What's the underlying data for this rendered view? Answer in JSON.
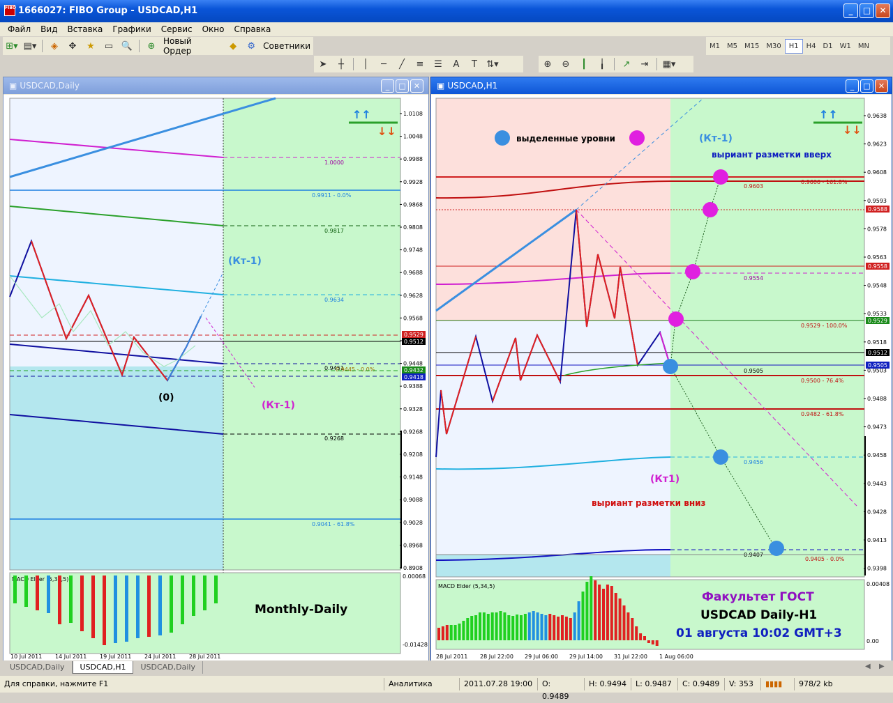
{
  "window": {
    "title": "1666027: FIBO Group - USDCAD,H1",
    "icon_text": "FIBO"
  },
  "menu": [
    "Файл",
    "Вид",
    "Вставка",
    "Графики",
    "Сервис",
    "Окно",
    "Справка"
  ],
  "toolbar": {
    "new_order": "Новый Ордер",
    "advisors": "Советники",
    "text_tool": "A",
    "timeframes": [
      "M1",
      "M5",
      "M15",
      "M30",
      "H1",
      "H4",
      "D1",
      "W1",
      "MN"
    ],
    "active_tf": "H1"
  },
  "left_chart": {
    "title": "USDCAD,Daily",
    "price_labels": [
      "1.0108",
      "1.0048",
      "0.9988",
      "0.9928",
      "0.9868",
      "0.9808",
      "0.9748",
      "0.9688",
      "0.9628",
      "0.9568",
      "0.9508",
      "0.9448",
      "0.9388",
      "0.9328",
      "0.9268",
      "0.9208",
      "0.9148",
      "0.9088",
      "0.9028",
      "0.8968",
      "0.8908"
    ],
    "boxed_labels": [
      "0.9529",
      "0.9512",
      "0.9432",
      "0.9418"
    ],
    "level_labels": [
      "1.0000",
      "0.9911 - 0.0%",
      "0.9817",
      "0.9634",
      "0.9451",
      "0.9445 - 0.0%",
      "0.9268",
      "0.9041 - 61.8%"
    ],
    "annotations": [
      "(Кт-1)",
      "(Кт-1)",
      "(0)"
    ],
    "macd_label": "MACD Elder (5,34,5)",
    "macd_scale": [
      "0.00068",
      "-0.01428"
    ],
    "caption": "Monthly-Daily",
    "dates": [
      "10 Jul 2011",
      "14 Jul 2011",
      "19 Jul 2011",
      "24 Jul 2011",
      "28 Jul 2011"
    ]
  },
  "right_chart": {
    "title": "USDCAD,H1",
    "price_labels": [
      "0.9638",
      "0.9623",
      "0.9608",
      "0.9593",
      "0.9578",
      "0.9563",
      "0.9548",
      "0.9533",
      "0.9518",
      "0.9503",
      "0.9488",
      "0.9473",
      "0.9458",
      "0.9443",
      "0.9428",
      "0.9413",
      "0.9398"
    ],
    "boxed_labels": [
      "0.9588",
      "0.9558",
      "0.9529",
      "0.9512",
      "0.9505"
    ],
    "level_labels": [
      "0.9603",
      "0.9606 - 161.8%",
      "0.9554",
      "0.9529 - 100.0%",
      "0.9505",
      "0.9500 - 76.4%",
      "0.9482 - 61.8%",
      "0.9456",
      "0.9407",
      "0.9405 - 0.0%"
    ],
    "legend_text": "выделенные уровни",
    "up_annotation": "(Кт-1)",
    "up_text": "выриант разметки вверх",
    "down_annotation": "(Кт1)",
    "down_text": "выриант разметки вниз",
    "macd_label": "MACD Elder (5,34,5)",
    "macd_scale": [
      "0.00408",
      "0.00"
    ],
    "caption1": "Факультет ГОСТ",
    "caption2": "USDCAD Daily-H1",
    "caption3": "01 августа 10:02 GMT+3",
    "dates": [
      "28 Jul 2011",
      "28 Jul 22:00",
      "29 Jul 06:00",
      "29 Jul 14:00",
      "31 Jul 22:00",
      "1 Aug 06:00"
    ]
  },
  "tabs": [
    "USDCAD,Daily",
    "USDCAD,H1",
    "USDCAD,Daily"
  ],
  "status": {
    "help": "Для справки, нажмите F1",
    "profile": "Аналитика",
    "time": "2011.07.28 19:00",
    "open": "O: 0.9489",
    "high": "H: 0.9494",
    "low": "L: 0.9487",
    "close": "C: 0.9489",
    "volume": "V: 353",
    "traffic": "978/2 kb"
  }
}
